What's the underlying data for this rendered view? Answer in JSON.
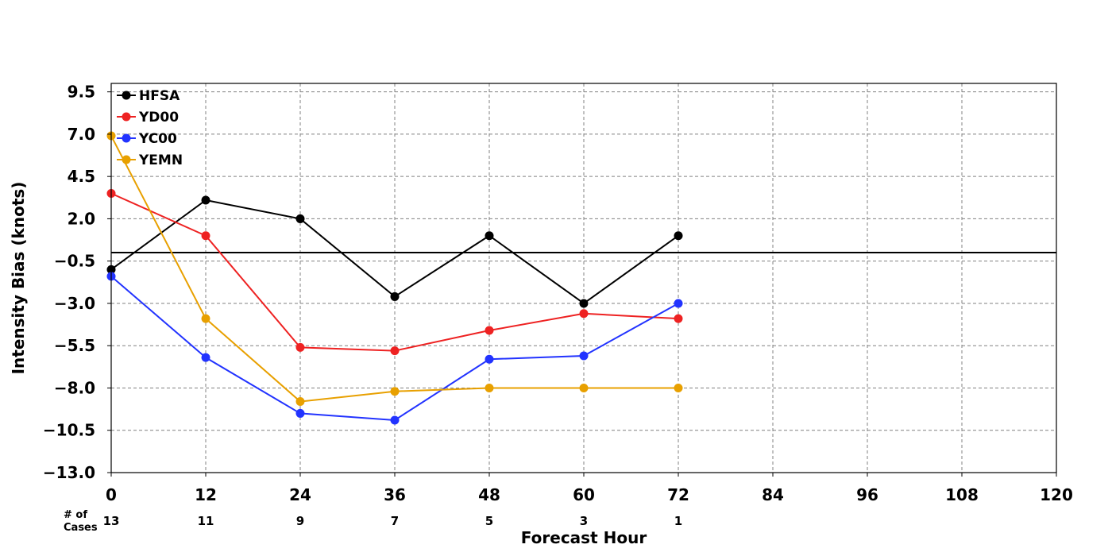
{
  "chart_data": {
    "type": "line",
    "title": "",
    "xlabel": "Forecast Hour",
    "ylabel": "Intensity Bias (knots)",
    "x": [
      0,
      12,
      24,
      36,
      48,
      60,
      72
    ],
    "xticks": [
      "0",
      "12",
      "24",
      "36",
      "48",
      "60",
      "72",
      "84",
      "96",
      "108",
      "120"
    ],
    "yticks": [
      "9.5",
      "7.0",
      "4.5",
      "2.0",
      "−0.5",
      "−3.0",
      "−5.5",
      "−8.0",
      "−10.5",
      "−13.0"
    ],
    "xlim": [
      0,
      120
    ],
    "ylim": [
      -13.0,
      10.0
    ],
    "zero_line": 0,
    "grid": true,
    "legend_position": "top-left",
    "series": [
      {
        "name": "HFSA",
        "color": "#000000",
        "values": [
          -1.0,
          3.1,
          2.0,
          -2.6,
          1.0,
          -3.0,
          1.0
        ]
      },
      {
        "name": "YD00",
        "color": "#ee2222",
        "values": [
          3.5,
          1.0,
          -5.6,
          -5.8,
          -4.6,
          -3.6,
          -3.9
        ]
      },
      {
        "name": "YC00",
        "color": "#2233ff",
        "values": [
          -1.4,
          -6.2,
          -9.5,
          -9.9,
          -6.3,
          -6.1,
          -3.0
        ]
      },
      {
        "name": "YEMN",
        "color": "#e8a000",
        "values": [
          6.9,
          -3.9,
          -8.8,
          -8.2,
          -8.0,
          -8.0,
          -8.0
        ]
      }
    ],
    "cases_label_line1": "# of",
    "cases_label_line2": "Cases",
    "cases": [
      "13",
      "11",
      "9",
      "7",
      "5",
      "3",
      "1"
    ]
  }
}
